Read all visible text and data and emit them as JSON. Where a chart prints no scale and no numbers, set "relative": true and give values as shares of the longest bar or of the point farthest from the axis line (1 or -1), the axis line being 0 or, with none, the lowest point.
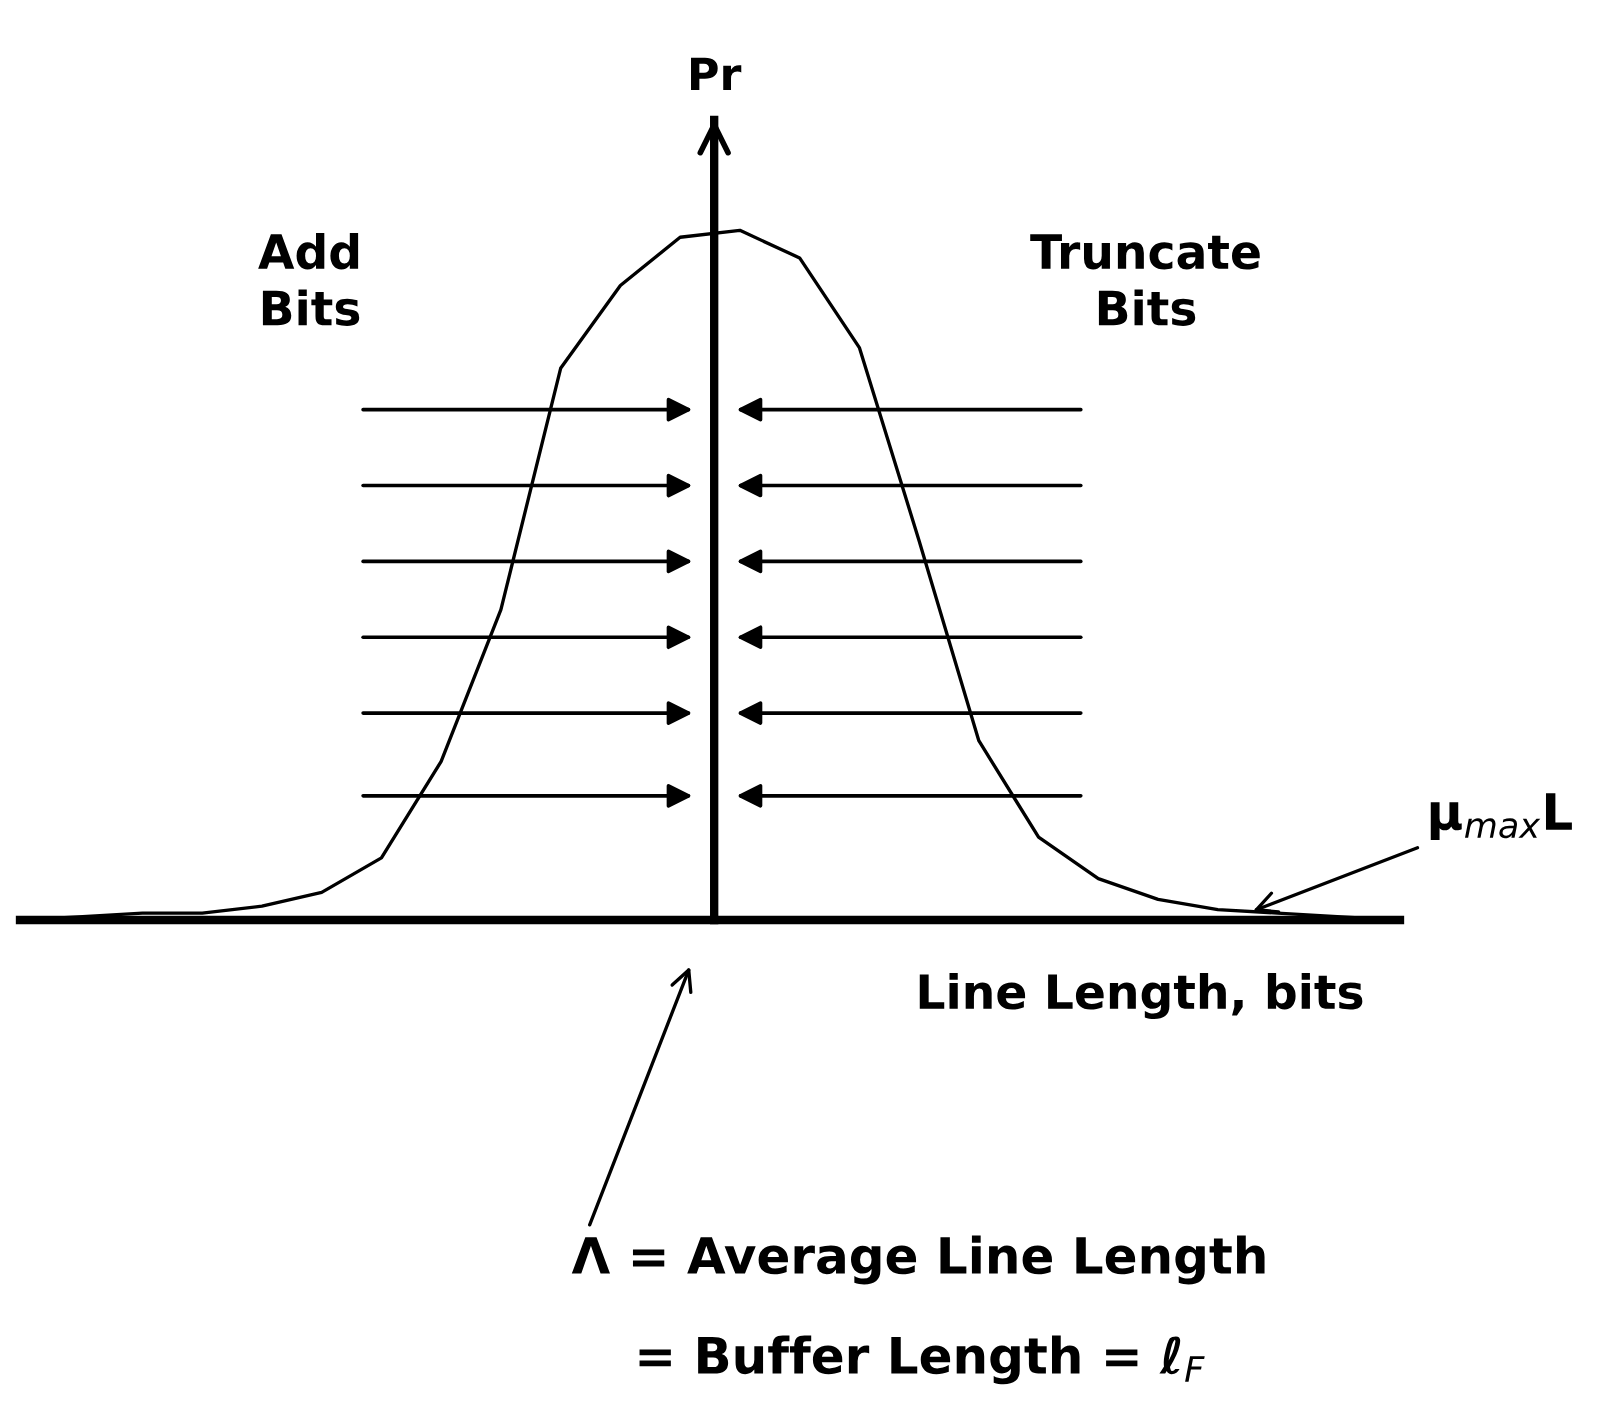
{
  "chart_data": {
    "type": "line",
    "relative": true,
    "ylabel": "Pr",
    "xlabel": "Line Length, bits",
    "color": "#000000",
    "legend": false,
    "marker": "none",
    "line_style": "solid",
    "tick_labels": false,
    "categories": [
      null,
      null,
      null,
      null,
      null,
      null,
      null,
      null,
      null,
      null,
      null,
      null,
      null,
      null,
      null,
      null,
      null,
      null,
      null,
      null,
      null,
      null,
      null,
      null
    ],
    "values": [
      0,
      0.005,
      0.01,
      0.01,
      0.02,
      0.04,
      0.09,
      0.23,
      0.45,
      0.8,
      0.92,
      0.99,
      1.0,
      0.96,
      0.83,
      0.55,
      0.26,
      0.12,
      0.06,
      0.03,
      0.015,
      0.01,
      0.005,
      0
    ],
    "annotations": [
      "Add Bits",
      "Truncate Bits",
      "μ$_{max}$L",
      "Λ = Average Line Length",
      "= Buffer Length = ℓ$_{F}$"
    ]
  }
}
